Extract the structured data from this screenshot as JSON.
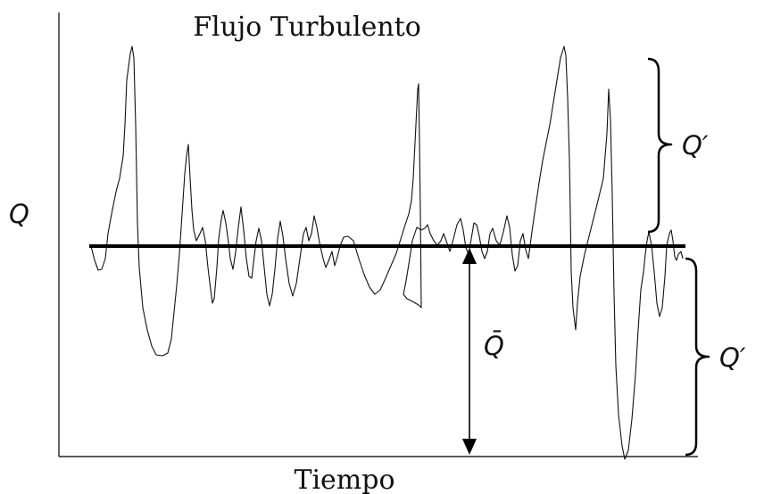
{
  "title": "Flujo Turbulento",
  "y_label": "Q",
  "x_label": "Tiempo",
  "mean_label": "Q̄",
  "fluctuation_label_upper": "Q′",
  "fluctuation_label_lower": "Q′",
  "colors": {
    "line": "#111111",
    "background": "#ffffff"
  }
}
